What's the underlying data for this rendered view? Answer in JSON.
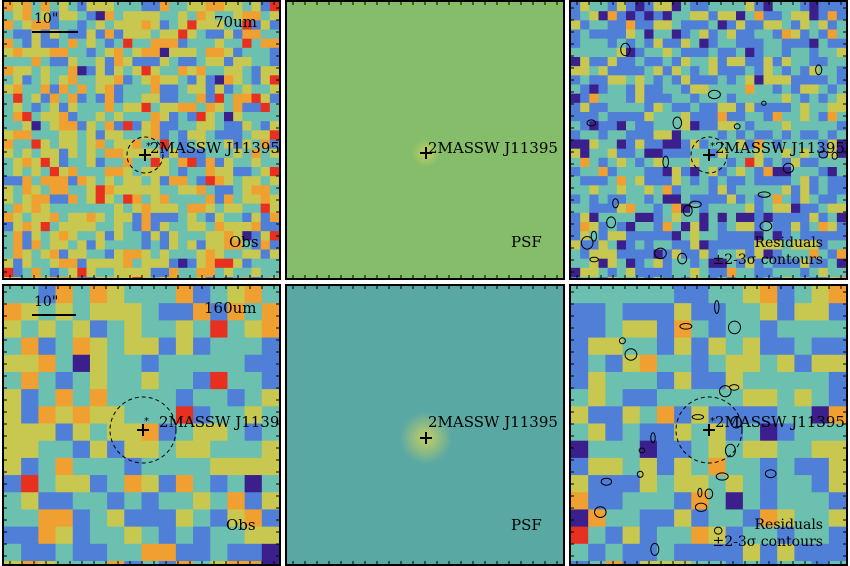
{
  "target_name": "2MASSW J11395",
  "scale_label": "10\"",
  "rows": [
    {
      "band_label": "70um",
      "panels": [
        {
          "kind": "obs",
          "label": "Obs"
        },
        {
          "kind": "psf",
          "label": "PSF"
        },
        {
          "kind": "residual",
          "label_line1": "Residuals",
          "label_line2": "±2-3σ contours"
        }
      ]
    },
    {
      "band_label": "160um",
      "panels": [
        {
          "kind": "obs",
          "label": "Obs"
        },
        {
          "kind": "psf",
          "label": "PSF"
        },
        {
          "kind": "residual",
          "label_line1": "Residuals",
          "label_line2": "±2-3σ contours"
        }
      ]
    }
  ],
  "colors": {
    "map_low": "#3b1f8c",
    "map_mid_low": "#4f7fd6",
    "map_mid": "#6cc0b0",
    "map_mid_high": "#c8c850",
    "map_high": "#f0a030",
    "map_peak": "#e83020",
    "psf_bg_70": "#85bd6a",
    "psf_bg_160": "#5aa8a4"
  }
}
